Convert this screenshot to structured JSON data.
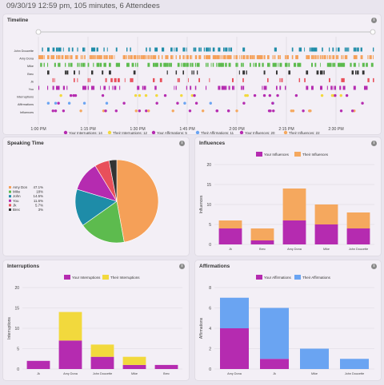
{
  "header": {
    "text": "09/30/19 12:59 pm, 105 minutes, 6 Attendees"
  },
  "colors": {
    "amy": "#f5a058",
    "mike": "#5dbb4e",
    "john": "#1e8ca8",
    "you": "#b52bb0",
    "jk": "#e8505b",
    "brec": "#333333",
    "theirInt": "#f2d93d",
    "theirAff": "#6aa4f2",
    "theirInf": "#f5a85e",
    "yourColor": "#b52bb0"
  },
  "timeline": {
    "title": "Timeline",
    "rows": [
      "John Doucette",
      "Amy Dona",
      "Mike",
      "Brec",
      "Jk",
      "You",
      "Interruptions",
      "Affirmations",
      "Influences"
    ],
    "ticks": [
      "1:00 PM",
      "1:15 PM",
      "1:30 PM",
      "1:45 PM",
      "2:00 PM",
      "2:15 PM",
      "2:30 PM"
    ],
    "legend": [
      {
        "label": "Your Interruptions: 14",
        "color": "#b52bb0"
      },
      {
        "label": "Their Interruptions: 12",
        "color": "#f2d93d"
      },
      {
        "label": "Your Affirmations: 5",
        "color": "#b52bb0"
      },
      {
        "label": "Their Affirmations: 11",
        "color": "#6aa4f2"
      },
      {
        "label": "Your Influences: 20",
        "color": "#b52bb0"
      },
      {
        "label": "Their Influences: 22",
        "color": "#f5a85e"
      }
    ]
  },
  "speaking": {
    "title": "Speaking Time",
    "legend": [
      {
        "name": "Amy Don",
        "pct": "47.1%"
      },
      {
        "name": "Mike",
        "pct": "18%"
      },
      {
        "name": "John",
        "pct": "14.5%"
      },
      {
        "name": "You",
        "pct": "11.6%"
      },
      {
        "name": "Jk",
        "pct": "5.7%"
      },
      {
        "name": "Brec",
        "pct": "3%"
      }
    ]
  },
  "influences": {
    "title": "Influences",
    "ylabel": "Influences",
    "legend": [
      "Your Influences",
      "Their Influences"
    ]
  },
  "interruptions": {
    "title": "Interruptions",
    "ylabel": "Interruptions",
    "legend": [
      "Your Interruptions",
      "Their Interruptions"
    ]
  },
  "affirmations": {
    "title": "Affirmations",
    "ylabel": "Affirmations",
    "legend": [
      "Your Affirmations",
      "Their Affirmations"
    ]
  },
  "chart_data": [
    {
      "type": "pie",
      "title": "Speaking Time",
      "labels": [
        "Amy Don",
        "Mike",
        "John",
        "You",
        "Jk",
        "Brec"
      ],
      "values": [
        47.1,
        18,
        14.5,
        11.6,
        5.7,
        3
      ]
    },
    {
      "type": "bar",
      "title": "Influences",
      "ylabel": "Influences",
      "ylim": [
        0,
        20
      ],
      "yticks": [
        0,
        5,
        10,
        15,
        20
      ],
      "categories": [
        "Jk",
        "Brec",
        "Amy Dona",
        "Mike",
        "John Doucette"
      ],
      "series": [
        {
          "name": "Your Influences",
          "values": [
            4,
            1,
            6,
            5,
            4
          ]
        },
        {
          "name": "Their Influences",
          "values": [
            2,
            3,
            8,
            5,
            4
          ]
        }
      ]
    },
    {
      "type": "bar",
      "title": "Interruptions",
      "ylabel": "Interruptions",
      "ylim": [
        0,
        20
      ],
      "yticks": [
        0,
        5,
        10,
        15,
        20
      ],
      "categories": [
        "Jk",
        "Amy Dona",
        "John Doucette",
        "Mike",
        "Brec"
      ],
      "series": [
        {
          "name": "Your Interruptions",
          "values": [
            2,
            7,
            3,
            1,
            1
          ]
        },
        {
          "name": "Their Interruptions",
          "values": [
            0,
            7,
            3,
            2,
            0
          ]
        }
      ]
    },
    {
      "type": "bar",
      "title": "Affirmations",
      "ylabel": "Affirmations",
      "ylim": [
        0,
        8
      ],
      "yticks": [
        0,
        2,
        4,
        6,
        8
      ],
      "categories": [
        "Amy Dona",
        "Jk",
        "Mike",
        "John Doucette"
      ],
      "series": [
        {
          "name": "Your Affirmations",
          "values": [
            4,
            1,
            0,
            0
          ]
        },
        {
          "name": "Their Affirmations",
          "values": [
            3,
            5,
            2,
            1
          ]
        }
      ]
    }
  ]
}
